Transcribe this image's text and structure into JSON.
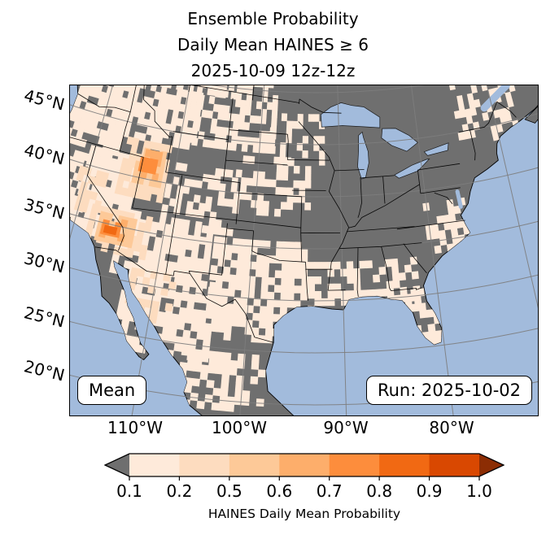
{
  "figure": {
    "title_lines": [
      "Ensemble Probability",
      "Daily Mean HAINES ≥ 6",
      "2025-10-09 12z-12z"
    ],
    "annotations": {
      "mean_label": "Mean",
      "run_label": "Run: 2025-10-02"
    },
    "colors": {
      "ocean": "#a2bbdc",
      "land_masked": "#6f6f6f",
      "gridline": "#7d7d7d",
      "state_border": "#000000"
    }
  },
  "chart_data": {
    "type": "heatmap",
    "title": "Ensemble Probability — Daily Mean HAINES ≥ 6 — 2025-10-09 12z-12z",
    "x_tick_labels": [
      "110°W",
      "100°W",
      "90°W",
      "80°W"
    ],
    "y_tick_labels": [
      "45°N",
      "40°N",
      "35°N",
      "30°N",
      "25°N",
      "20°N"
    ],
    "x_ticks_deg_west": [
      110,
      100,
      90,
      80
    ],
    "y_ticks_deg_north": [
      45,
      40,
      35,
      30,
      25,
      20
    ],
    "colorbar": {
      "label": "HAINES Daily Mean Probability",
      "tick_labels": [
        "0.1",
        "0.2",
        "0.5",
        "0.6",
        "0.7",
        "0.8",
        "0.9",
        "1.0"
      ],
      "boundaries": [
        0.1,
        0.2,
        0.5,
        0.6,
        0.7,
        0.8,
        0.9,
        1.0
      ],
      "segment_colors": [
        "#feeada",
        "#fddcbf",
        "#fdc998",
        "#fdae6b",
        "#fd8d3c",
        "#f16913",
        "#d94801"
      ],
      "under_color": "#6f6f6f",
      "over_color": "#8c2d04"
    },
    "regions": [
      {
        "lat_range": [
          41.5,
          50.5
        ],
        "lon_range": [
          117,
          124.8
        ],
        "probability": 0.15,
        "coverage": 0.8
      },
      {
        "lat_range": [
          43.5,
          50.5
        ],
        "lon_range": [
          108,
          117
        ],
        "probability": 0.15,
        "coverage": 0.75
      },
      {
        "lat_range": [
          44,
          50.5
        ],
        "lon_range": [
          98,
          108
        ],
        "probability": 0.15,
        "coverage": 0.55
      },
      {
        "lat_range": [
          33.5,
          41.5
        ],
        "lon_range": [
          114.2,
          120.3
        ],
        "probability": 0.15,
        "coverage": 0.8
      },
      {
        "lat_range": [
          34,
          41
        ],
        "lon_range": [
          118,
          123.5
        ],
        "probability": 0.15,
        "coverage": 0.7
      },
      {
        "lat_range": [
          30.5,
          36.8
        ],
        "lon_range": [
          104.5,
          114.8
        ],
        "probability": 0.15,
        "coverage": 0.75
      },
      {
        "lat_range": [
          23.5,
          30.5
        ],
        "lon_range": [
          103.5,
          113
        ],
        "probability": 0.15,
        "coverage": 0.65
      },
      {
        "lat_range": [
          25.8,
          35.5
        ],
        "lon_range": [
          93.8,
          104.3
        ],
        "probability": 0.15,
        "coverage": 0.7
      },
      {
        "lat_range": [
          28.8,
          33.6
        ],
        "lon_range": [
          81.8,
          93.9
        ],
        "probability": 0.15,
        "coverage": 0.55
      },
      {
        "lat_range": [
          25,
          30.4
        ],
        "lon_range": [
          80,
          83.4
        ],
        "probability": 0.15,
        "coverage": 0.6
      },
      {
        "lat_range": [
          35.8,
          41.5
        ],
        "lon_range": [
          102.3,
          110.5
        ],
        "probability": 0.15,
        "coverage": 0.5
      },
      {
        "lat_range": [
          43,
          47.6
        ],
        "lon_range": [
          91.8,
          98.2
        ],
        "probability": 0.15,
        "coverage": 0.45
      },
      {
        "lat_range": [
          43.5,
          50
        ],
        "lon_range": [
          66.5,
          74.5
        ],
        "probability": 0.15,
        "coverage": 0.5
      },
      {
        "lat_range": [
          33.8,
          38.3
        ],
        "lon_range": [
          74.8,
          80.2
        ],
        "probability": 0.15,
        "coverage": 0.45
      },
      {
        "lat_range": [
          19,
          24
        ],
        "lon_range": [
          97.8,
          106.2
        ],
        "probability": 0.15,
        "coverage": 0.55
      },
      {
        "lat_range": [
          38,
          43.5
        ],
        "lon_range": [
          93.5,
          102.3
        ],
        "probability": 0.15,
        "coverage": 0.4
      },
      {
        "lat_range": [
          49,
          52
        ],
        "lon_range": [
          104,
          124
        ],
        "probability": 0.15,
        "coverage": 0.6
      },
      {
        "lat_range": [
          38,
          43
        ],
        "lon_range": [
          110.8,
          116.2
        ],
        "probability": 0.3,
        "coverage": 0.7
      },
      {
        "lat_range": [
          35.5,
          39.5
        ],
        "lon_range": [
          117.6,
          120.6
        ],
        "probability": 0.3,
        "coverage": 0.5
      },
      {
        "lat_range": [
          32.3,
          36.3
        ],
        "lon_range": [
          111.5,
          118.2
        ],
        "probability": 0.3,
        "coverage": 0.6
      },
      {
        "lat_range": [
          26.5,
          31
        ],
        "lon_range": [
          107.8,
          112.3
        ],
        "probability": 0.3,
        "coverage": 0.45
      },
      {
        "lat_range": [
          39.4,
          42.6
        ],
        "lon_range": [
          111.3,
          114.8
        ],
        "probability": 0.55,
        "coverage": 0.7
      },
      {
        "lat_range": [
          33.2,
          35.9
        ],
        "lon_range": [
          113.2,
          117.2
        ],
        "probability": 0.55,
        "coverage": 0.65
      },
      {
        "lat_range": [
          40,
          42.3
        ],
        "lon_range": [
          111.8,
          114.2
        ],
        "probability": 0.65,
        "coverage": 0.6
      },
      {
        "lat_range": [
          33.6,
          35.3
        ],
        "lon_range": [
          114.2,
          116.8
        ],
        "probability": 0.65,
        "coverage": 0.6
      },
      {
        "lat_range": [
          40.6,
          41.9
        ],
        "lon_range": [
          112.2,
          113.8
        ],
        "probability": 0.75,
        "coverage": 0.55
      },
      {
        "lat_range": [
          33.9,
          35
        ],
        "lon_range": [
          114.8,
          116.4
        ],
        "probability": 0.75,
        "coverage": 0.5
      },
      {
        "lat_range": [
          34.1,
          34.8
        ],
        "lon_range": [
          115.2,
          116
        ],
        "probability": 0.85,
        "coverage": 0.5
      }
    ]
  }
}
